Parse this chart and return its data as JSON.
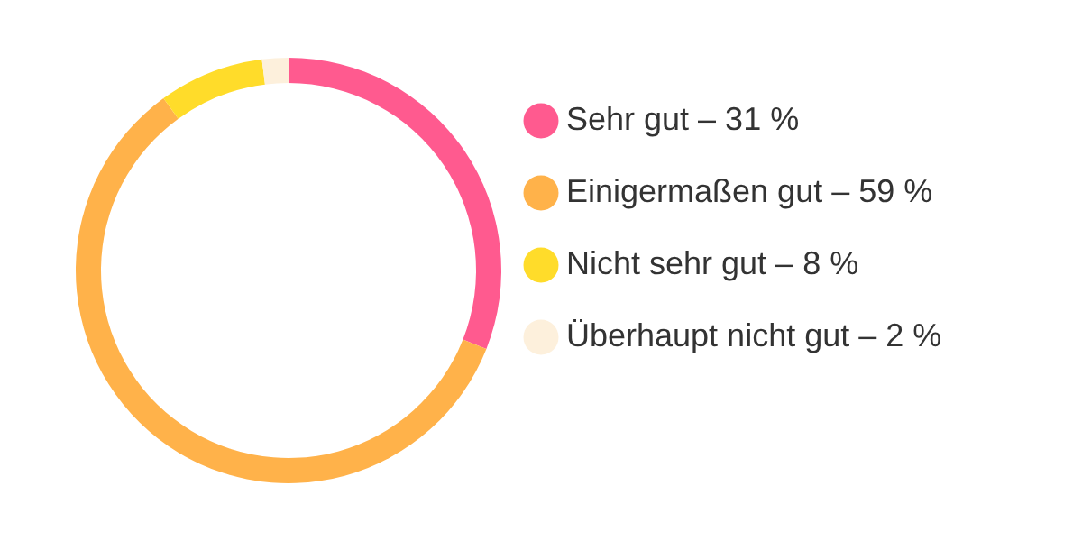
{
  "chart_data": {
    "type": "donut",
    "categories": [
      "Sehr gut – 31 %",
      "Einigermaßen gut – 59 %",
      "Nicht sehr gut – 8 %",
      "Überhaupt nicht gut – 2 %"
    ],
    "values": [
      31,
      59,
      8,
      2
    ],
    "colors": [
      "#ff5a8f",
      "#ffb24a",
      "#ffdc2a",
      "#fdf0dc"
    ],
    "legend": "right"
  }
}
